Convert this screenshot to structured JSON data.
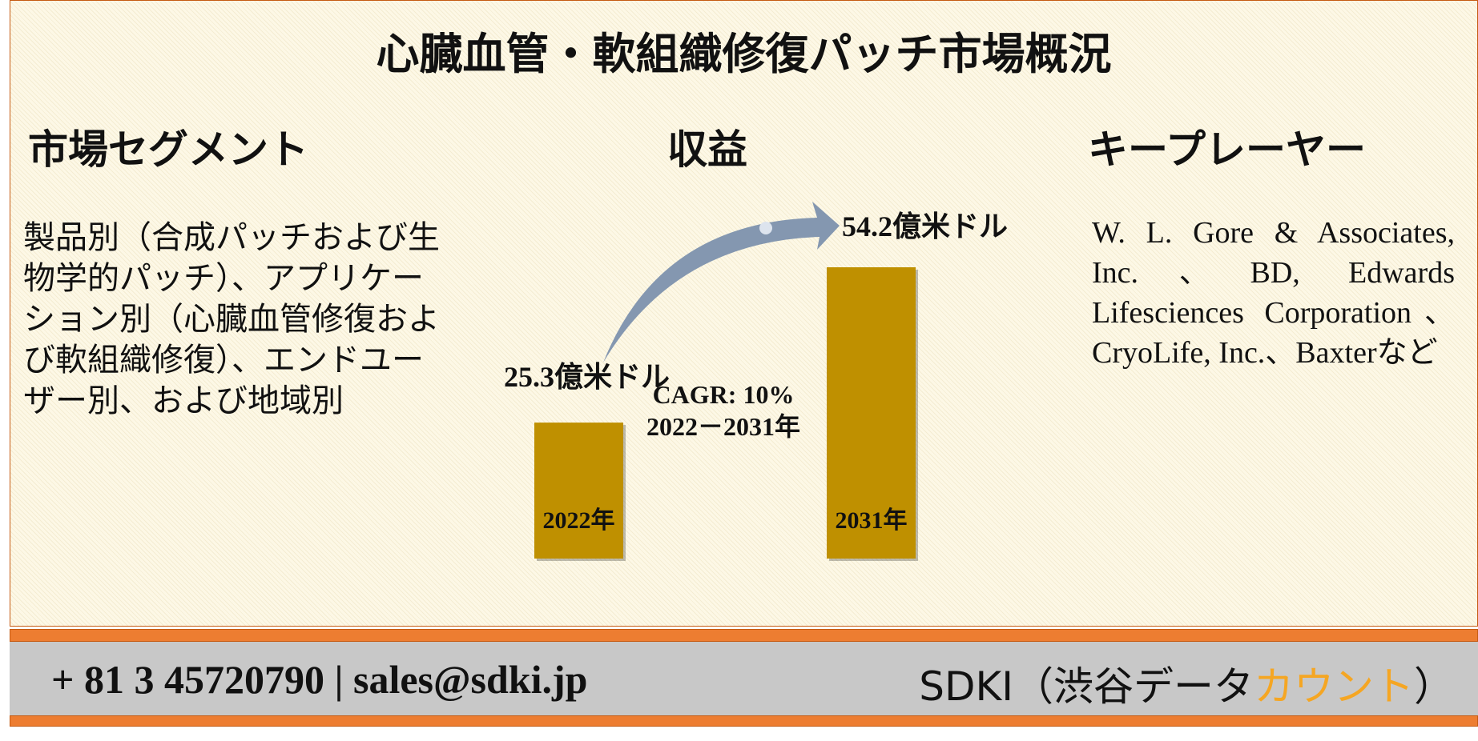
{
  "title": "心臓血管・軟組織修復パッチ市場概況",
  "segments": {
    "heading": "市場セグメント",
    "text": "製品別（合成パッチおよび生物学的パッチ）、アプリケーション別（心臓血管修復および軟組織修復）、エンドユーザー別、および地域別"
  },
  "chart_data": {
    "type": "bar",
    "title": "収益",
    "categories": [
      "2022年",
      "2031年"
    ],
    "values": [
      25.3,
      54.2
    ],
    "value_labels": [
      "25.3億米ドル",
      "54.2億米ドル"
    ],
    "color": "#bf9000",
    "annotations": [
      "CAGR: 10%",
      "2022－2031年"
    ]
  },
  "players": {
    "heading": "キープレーヤー",
    "text": "W. L. Gore & Associates, Inc.、BD, Edwards Lifesciences Corporation、CryoLife, Inc.、Baxterなど"
  },
  "footer": {
    "contact": "+ 81 3 45720790 | sales@sdki.jp",
    "brand": "SDKI（渋谷データ",
    "brand_accent": "カウント",
    "brand_end": "）"
  }
}
